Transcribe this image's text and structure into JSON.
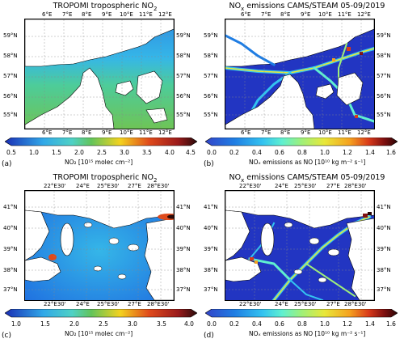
{
  "panels": [
    {
      "letter": "(a)",
      "title_pre": "TROPOMI tropospheric NO",
      "title_sub": "2",
      "title_post": "",
      "top_lon": [
        "6°E",
        "7°E",
        "8°E",
        "9°E",
        "10°E",
        "11°E",
        "12°E"
      ],
      "bottom_lon": [
        "6°E",
        "7°E",
        "8°E",
        "9°E",
        "10°E",
        "11°E",
        "12°E"
      ],
      "left_lat": [
        "59°N",
        "58°N",
        "57°N",
        "56°N",
        "55°N"
      ],
      "right_lat": [
        "59°N",
        "58°N",
        "57°N",
        "56°N",
        "55°N"
      ],
      "cbar_ticks": [
        "0.5",
        "1.0",
        "1.5",
        "2.0",
        "2.5",
        "3.0",
        "3.5",
        "4.0",
        "4.5"
      ],
      "cbar_label": "NO₂ [10¹⁵ molec cm⁻²]",
      "cbar_style": "tropomi"
    },
    {
      "letter": "(b)",
      "title_pre": "NO",
      "title_sub": "x",
      "title_post": " emissions CAMS/STEAM 05-09/2019",
      "top_lon": [
        "6°E",
        "7°E",
        "8°E",
        "9°E",
        "10°E",
        "11°E",
        "12°E"
      ],
      "bottom_lon": [
        "6°E",
        "7°E",
        "8°E",
        "9°E",
        "10°E",
        "11°E",
        "12°E"
      ],
      "left_lat": [
        "59°N",
        "58°N",
        "57°N",
        "56°N",
        "55°N"
      ],
      "right_lat": [
        "59°N",
        "58°N",
        "57°N",
        "56°N",
        "55°N"
      ],
      "cbar_ticks": [
        "0.0",
        "0.2",
        "0.4",
        "0.6",
        "0.8",
        "1.0",
        "1.2",
        "1.4",
        "1.6"
      ],
      "cbar_label": "NOₓ emissions as NO [10¹⁰ kg m⁻² s⁻¹]",
      "cbar_style": "emis"
    },
    {
      "letter": "(c)",
      "title_pre": "TROPOMI tropospheric NO",
      "title_sub": "2",
      "title_post": "",
      "top_lon": [
        "22°E30'",
        "24°E",
        "25°E30'",
        "27°E",
        "28°E30'"
      ],
      "bottom_lon": [
        "22°E30'",
        "24°E",
        "25°E30'",
        "27°E",
        "28°E30'"
      ],
      "left_lat": [
        "41°N",
        "40°N",
        "39°N",
        "38°N",
        "37°N"
      ],
      "right_lat": [
        "41°N",
        "40°N",
        "39°N",
        "38°N",
        "37°N"
      ],
      "cbar_ticks": [
        "1.0",
        "1.5",
        "2.0",
        "2.5",
        "3.0",
        "3.5",
        "4.0"
      ],
      "cbar_label": "NO₂ [10¹⁵ molec cm⁻²]",
      "cbar_style": "tropomi"
    },
    {
      "letter": "(d)",
      "title_pre": "NO",
      "title_sub": "x",
      "title_post": " emissions CAMS/STEAM 05-09/2019",
      "top_lon": [
        "22°E30'",
        "24°E",
        "25°E30'",
        "27°E",
        "28°E30'"
      ],
      "bottom_lon": [
        "22°E30'",
        "24°E",
        "25°E30'",
        "27°E",
        "28°E30'"
      ],
      "left_lat": [
        "41°N",
        "40°N",
        "39°N",
        "38°N",
        "37°N"
      ],
      "right_lat": [
        "41°N",
        "40°N",
        "39°N",
        "38°N",
        "37°N"
      ],
      "cbar_ticks": [
        "0.0",
        "0.2",
        "0.4",
        "0.6",
        "0.8",
        "1.0",
        "1.2",
        "1.4",
        "1.6"
      ],
      "cbar_label": "NOₓ emissions as NO [10¹⁰ kg m⁻² s⁻¹]",
      "cbar_style": "emis"
    }
  ],
  "colors": {
    "tropomi_scale": [
      "#1a2fb5",
      "#1f6fe0",
      "#31a8e8",
      "#4fd1c5",
      "#63c45a",
      "#b6d23a",
      "#f3d21f",
      "#f29a1d",
      "#e04a1b",
      "#9b1b1b",
      "#2a0a0a"
    ],
    "emis_scale": [
      "#3344c8",
      "#1f7de3",
      "#33c3f0",
      "#5ff0d0",
      "#9ef07a",
      "#e8e839",
      "#f5a21f",
      "#d93a1a",
      "#801010",
      "#2a0505"
    ],
    "land": "#ffffff",
    "outline": "#000000"
  }
}
